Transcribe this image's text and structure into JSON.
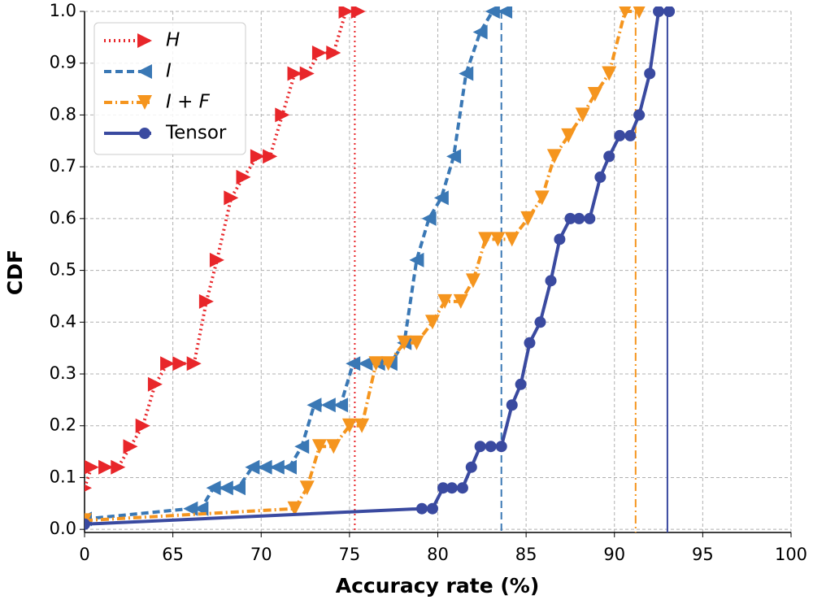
{
  "chart_data": {
    "type": "line",
    "xlabel": "Accuracy rate (%)",
    "ylabel": "CDF",
    "xlim": [
      60,
      100
    ],
    "xticks": [
      {
        "value": 60,
        "label": "0"
      },
      65,
      70,
      75,
      80,
      85,
      90,
      95,
      100
    ],
    "ylim": [
      -0.006,
      1.0
    ],
    "yticks": [
      {
        "value": 0,
        "label": "0.0"
      },
      {
        "value": 0.1,
        "label": "0.1"
      },
      {
        "value": 0.2,
        "label": "0.2"
      },
      {
        "value": 0.3,
        "label": "0.3"
      },
      {
        "value": 0.4,
        "label": "0.4"
      },
      {
        "value": 0.5,
        "label": "0.5"
      },
      {
        "value": 0.6,
        "label": "0.6"
      },
      {
        "value": 0.7,
        "label": "0.7"
      },
      {
        "value": 0.8,
        "label": "0.8"
      },
      {
        "value": 0.9,
        "label": "0.9"
      },
      {
        "value": 1,
        "label": "1.0"
      }
    ],
    "grid": true,
    "legend": "upper left",
    "series": [
      {
        "name": "H",
        "color": "#e8262a",
        "dash": "2 4",
        "marker": "right",
        "vline": 75.3,
        "x": [
          60.0,
          60.4,
          61.2,
          61.9,
          62.6,
          63.3,
          64.0,
          64.7,
          65.4,
          66.2,
          66.9,
          67.5,
          68.3,
          69.0,
          69.8,
          70.5,
          71.2,
          71.9,
          72.6,
          73.3,
          74.1,
          74.8,
          75.5
        ],
        "values": [
          0.08,
          0.12,
          0.12,
          0.12,
          0.16,
          0.2,
          0.28,
          0.32,
          0.32,
          0.32,
          0.44,
          0.52,
          0.64,
          0.68,
          0.72,
          0.72,
          0.8,
          0.88,
          0.88,
          0.92,
          0.92,
          1.0,
          1.0
        ]
      },
      {
        "name": "I",
        "color": "#3a78b5",
        "dash": "9 5",
        "marker": "left",
        "vline": 83.6,
        "x": [
          60.0,
          66.0,
          66.6,
          67.3,
          68.0,
          68.7,
          69.5,
          70.2,
          70.9,
          71.6,
          72.3,
          73.0,
          73.8,
          74.5,
          75.2,
          75.9,
          76.6,
          77.3,
          78.1,
          78.8,
          79.5,
          80.2,
          80.9,
          81.6,
          82.4,
          83.1,
          83.8
        ],
        "values": [
          0.02,
          0.04,
          0.04,
          0.08,
          0.08,
          0.08,
          0.12,
          0.12,
          0.12,
          0.12,
          0.16,
          0.24,
          0.24,
          0.24,
          0.32,
          0.32,
          0.32,
          0.32,
          0.36,
          0.52,
          0.6,
          0.64,
          0.72,
          0.88,
          0.96,
          1.0,
          1.0
        ]
      },
      {
        "name": "I + F",
        "color": "#f5951e",
        "dash": "10 4 2 4",
        "marker": "down",
        "vline": 91.2,
        "x": [
          60.0,
          71.9,
          72.6,
          73.3,
          74.1,
          75.0,
          75.7,
          76.5,
          77.2,
          78.1,
          78.8,
          79.7,
          80.4,
          81.3,
          82.0,
          82.7,
          83.4,
          84.2,
          85.1,
          85.9,
          86.6,
          87.4,
          88.2,
          88.9,
          89.7,
          90.6,
          91.4
        ],
        "values": [
          0.017,
          0.04,
          0.08,
          0.16,
          0.16,
          0.2,
          0.2,
          0.32,
          0.32,
          0.36,
          0.36,
          0.4,
          0.44,
          0.44,
          0.48,
          0.56,
          0.56,
          0.56,
          0.6,
          0.64,
          0.72,
          0.76,
          0.8,
          0.84,
          0.88,
          1.0,
          1.0
        ]
      },
      {
        "name": "Tensor",
        "color": "#3a4aa0",
        "dash": "",
        "marker": "circle",
        "vline": 93.0,
        "x": [
          60.0,
          79.1,
          79.7,
          80.3,
          80.8,
          81.4,
          81.9,
          82.4,
          83.0,
          83.6,
          84.2,
          84.7,
          85.2,
          85.8,
          86.4,
          86.9,
          87.5,
          88.0,
          88.6,
          89.2,
          89.7,
          90.3,
          90.9,
          91.4,
          92.0,
          92.5,
          93.1
        ],
        "values": [
          0.01,
          0.04,
          0.04,
          0.08,
          0.08,
          0.08,
          0.12,
          0.16,
          0.16,
          0.16,
          0.24,
          0.28,
          0.36,
          0.4,
          0.48,
          0.56,
          0.6,
          0.6,
          0.6,
          0.68,
          0.72,
          0.76,
          0.76,
          0.8,
          0.88,
          1.0,
          1.0
        ]
      }
    ]
  }
}
